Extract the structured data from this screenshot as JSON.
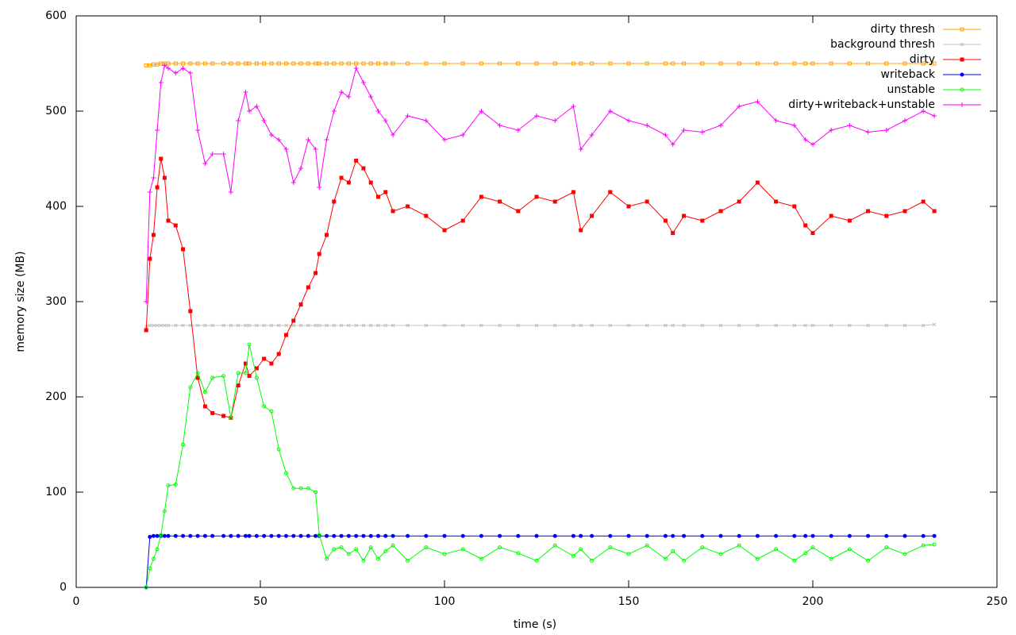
{
  "chart_data": {
    "type": "line",
    "xlabel": "time (s)",
    "ylabel": "memory size (MB)",
    "xlim": [
      0,
      250
    ],
    "xticks": [
      0,
      50,
      100,
      150,
      200,
      250
    ],
    "ylim": [
      0,
      600
    ],
    "yticks": [
      0,
      100,
      200,
      300,
      400,
      500,
      600
    ],
    "legend": "top right",
    "x": [
      19,
      20,
      21,
      22,
      23,
      24,
      25,
      27,
      29,
      31,
      33,
      35,
      37,
      40,
      42,
      44,
      46,
      47,
      49,
      51,
      53,
      55,
      57,
      59,
      61,
      63,
      65,
      66,
      68,
      70,
      72,
      74,
      76,
      78,
      80,
      82,
      84,
      86,
      90,
      95,
      100,
      105,
      110,
      115,
      120,
      125,
      130,
      135,
      137,
      140,
      145,
      150,
      155,
      160,
      162,
      165,
      170,
      175,
      180,
      185,
      190,
      195,
      198,
      200,
      205,
      210,
      215,
      220,
      225,
      230,
      233
    ],
    "series": [
      {
        "name": "dirty thresh",
        "color": "#ffa000",
        "marker": "square-open",
        "values": [
          548,
          548,
          549,
          549,
          550,
          550,
          550,
          550,
          550,
          550,
          550,
          550,
          550,
          550,
          550,
          550,
          550,
          550,
          550,
          550,
          550,
          550,
          550,
          550,
          550,
          550,
          550,
          550,
          550,
          550,
          550,
          550,
          550,
          550,
          550,
          550,
          550,
          550,
          550,
          550,
          550,
          550,
          550,
          550,
          550,
          550,
          550,
          550,
          550,
          550,
          550,
          550,
          550,
          550,
          550,
          550,
          550,
          550,
          550,
          550,
          550,
          550,
          550,
          550,
          550,
          550,
          550,
          550,
          550,
          550,
          550
        ]
      },
      {
        "name": "background thresh",
        "color": "#c0c0c0",
        "marker": "cross",
        "values": [
          274,
          275,
          275,
          275,
          275,
          275,
          275,
          275,
          275,
          275,
          275,
          275,
          275,
          275,
          275,
          275,
          275,
          275,
          275,
          275,
          275,
          275,
          275,
          275,
          275,
          275,
          275,
          275,
          275,
          275,
          275,
          275,
          275,
          275,
          275,
          275,
          275,
          275,
          275,
          275,
          275,
          275,
          275,
          275,
          275,
          275,
          275,
          275,
          275,
          275,
          275,
          275,
          275,
          275,
          275,
          275,
          275,
          275,
          275,
          275,
          275,
          275,
          275,
          275,
          275,
          275,
          275,
          275,
          275,
          275,
          276
        ]
      },
      {
        "name": "dirty",
        "color": "#ff0000",
        "marker": "square",
        "values": [
          270,
          345,
          370,
          420,
          450,
          430,
          385,
          380,
          355,
          290,
          220,
          190,
          183,
          180,
          178,
          212,
          235,
          222,
          230,
          240,
          235,
          245,
          265,
          280,
          297,
          315,
          330,
          350,
          370,
          405,
          430,
          425,
          448,
          440,
          425,
          410,
          415,
          395,
          400,
          390,
          375,
          385,
          410,
          405,
          395,
          410,
          405,
          415,
          375,
          390,
          415,
          400,
          405,
          385,
          372,
          390,
          385,
          395,
          405,
          425,
          405,
          400,
          380,
          372,
          390,
          385,
          395,
          390,
          395,
          405,
          395
        ]
      },
      {
        "name": "writeback",
        "color": "#0000ff",
        "marker": "circle",
        "values": [
          0,
          53,
          54,
          54,
          54,
          54,
          54,
          54,
          54,
          54,
          54,
          54,
          54,
          54,
          54,
          54,
          54,
          54,
          54,
          54,
          54,
          54,
          54,
          54,
          54,
          54,
          54,
          54,
          54,
          54,
          54,
          54,
          54,
          54,
          54,
          54,
          54,
          54,
          54,
          54,
          54,
          54,
          54,
          54,
          54,
          54,
          54,
          54,
          54,
          54,
          54,
          54,
          54,
          54,
          54,
          54,
          54,
          54,
          54,
          54,
          54,
          54,
          54,
          54,
          54,
          54,
          54,
          54,
          54,
          54,
          54
        ]
      },
      {
        "name": "unstable",
        "color": "#00ff00",
        "marker": "circle-open",
        "values": [
          0,
          20,
          30,
          40,
          55,
          80,
          107,
          108,
          150,
          210,
          225,
          205,
          220,
          222,
          178,
          225,
          225,
          255,
          220,
          190,
          185,
          145,
          120,
          104,
          104,
          104,
          100,
          55,
          30,
          40,
          42,
          35,
          40,
          28,
          42,
          30,
          38,
          44,
          28,
          42,
          35,
          40,
          30,
          42,
          36,
          28,
          44,
          33,
          40,
          28,
          42,
          35,
          44,
          30,
          38,
          28,
          42,
          35,
          44,
          30,
          40,
          28,
          36,
          42,
          30,
          40,
          28,
          42,
          35,
          44,
          45
        ]
      },
      {
        "name": "dirty+writeback+unstable",
        "color": "#ff00ff",
        "marker": "plus",
        "values": [
          300,
          415,
          430,
          480,
          530,
          548,
          545,
          540,
          545,
          540,
          480,
          445,
          455,
          455,
          415,
          490,
          520,
          500,
          505,
          490,
          475,
          470,
          460,
          425,
          440,
          470,
          460,
          420,
          470,
          500,
          520,
          515,
          545,
          530,
          515,
          500,
          490,
          475,
          495,
          490,
          470,
          475,
          500,
          485,
          480,
          495,
          490,
          505,
          460,
          475,
          500,
          490,
          485,
          475,
          465,
          480,
          478,
          485,
          505,
          510,
          490,
          485,
          470,
          465,
          480,
          485,
          478,
          480,
          490,
          500,
          495
        ]
      }
    ]
  }
}
